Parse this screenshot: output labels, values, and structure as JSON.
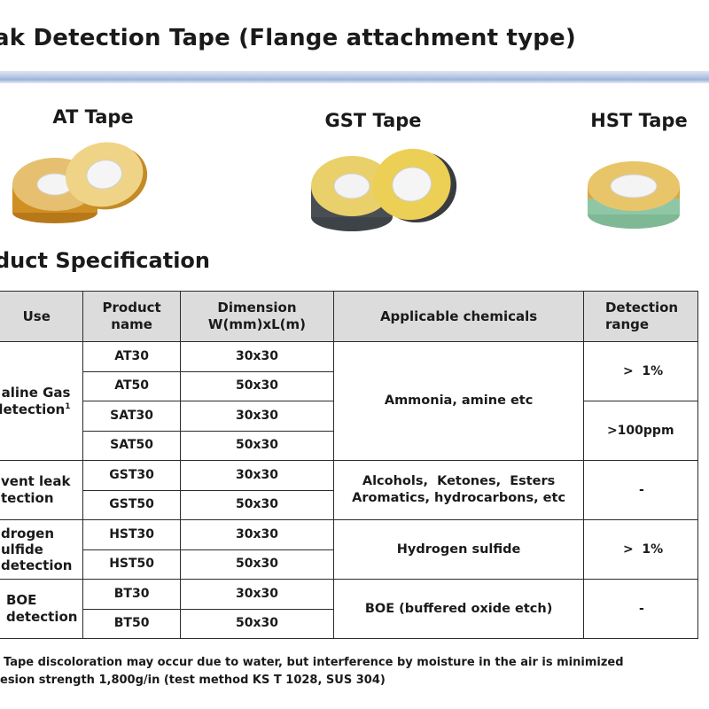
{
  "page": {
    "title": "ak Detection Tape (Flange attachment type)",
    "section_heading": "duct Specification"
  },
  "tapes": [
    {
      "label": "AT Tape",
      "colors": [
        "#d9a32d",
        "#e9c46a"
      ]
    },
    {
      "label": "GST Tape",
      "colors": [
        "#e9cb47",
        "#3e4348"
      ]
    },
    {
      "label": "HST Tape",
      "colors": [
        "#e6bb4f",
        "#8fc7a6"
      ]
    }
  ],
  "table": {
    "headers": {
      "use": "Use",
      "product_name": "Product\nname",
      "dimension": "Dimension\nW(mm)xL(m)",
      "chemicals": "Applicable chemicals",
      "range": "Detection\nrange"
    },
    "groups": [
      {
        "use": "aline Gas\ndetection",
        "use_sup": "1",
        "chemicals": "Ammonia, amine etc",
        "ranges": [
          ">  1%",
          ">100ppm"
        ],
        "rows": [
          {
            "product": "AT30",
            "dimension": "30x30"
          },
          {
            "product": "AT50",
            "dimension": "50x30"
          },
          {
            "product": "SAT30",
            "dimension": "30x30"
          },
          {
            "product": "SAT50",
            "dimension": "50x30"
          }
        ]
      },
      {
        "use": "vent leak\ntection",
        "chemicals": "Alcohols,  Ketones,  Esters\nAromatics, hydrocarbons, etc",
        "range": "-",
        "rows": [
          {
            "product": "GST30",
            "dimension": "30x30"
          },
          {
            "product": "GST50",
            "dimension": "50x30"
          }
        ]
      },
      {
        "use": "drogen\nulfide\ndetection",
        "chemicals": "Hydrogen sulfide",
        "range": ">  1%",
        "rows": [
          {
            "product": "HST30",
            "dimension": "30x30"
          },
          {
            "product": "HST50",
            "dimension": "50x30"
          }
        ]
      },
      {
        "use": "BOE\ndetection",
        "chemicals": "BOE (buffered oxide etch)",
        "range": "-",
        "rows": [
          {
            "product": "BT30",
            "dimension": "30x30"
          },
          {
            "product": "BT50",
            "dimension": "50x30"
          }
        ]
      }
    ]
  },
  "notes": [
    "Tape discoloration may occur due to water, but interference by moisture in the air is minimized",
    "esion strength 1,800g/in (test method KS T 1028, SUS 304)"
  ]
}
